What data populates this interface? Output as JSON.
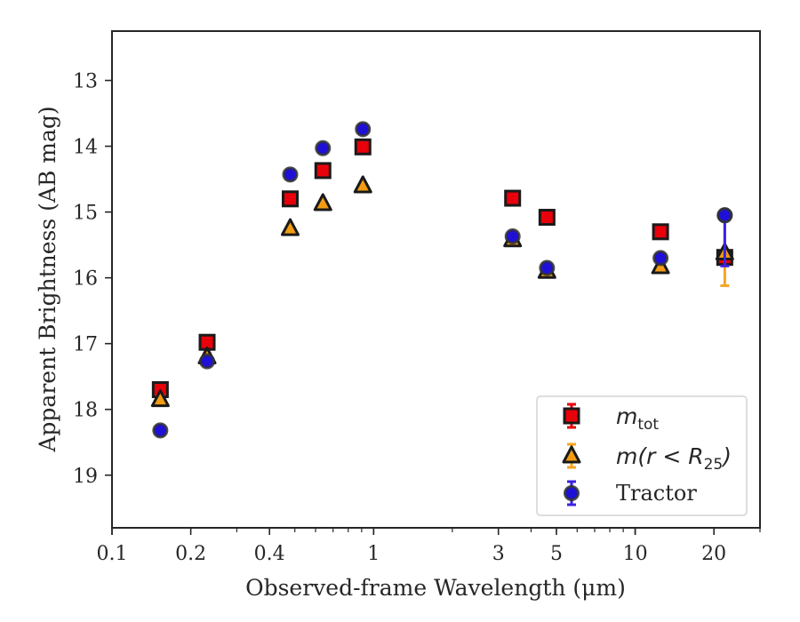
{
  "chart_data": {
    "type": "scatter",
    "xlabel": "Observed-frame Wavelength (μm)",
    "ylabel": "Apparent Brightness (AB mag)",
    "x_scale": "log",
    "xlim": [
      0.1,
      30
    ],
    "ylim": [
      19.8,
      12.25
    ],
    "y_inverted": true,
    "x_ticks": [
      0.1,
      0.2,
      0.4,
      1,
      3,
      5,
      10,
      20
    ],
    "x_tick_labels": [
      "0.1",
      "0.2",
      "0.4",
      "1",
      "3",
      "5",
      "10",
      "20"
    ],
    "y_ticks": [
      13,
      14,
      15,
      16,
      17,
      18,
      19
    ],
    "y_tick_labels": [
      "13",
      "14",
      "15",
      "16",
      "17",
      "18",
      "19"
    ],
    "grid": false,
    "legend_position": "bottom-right",
    "series": [
      {
        "name": "m_tot",
        "legend_main": "m",
        "legend_sub": "tot",
        "marker": "square",
        "color": "#e8000b",
        "error_color": "#e8000b",
        "x": [
          0.153,
          0.231,
          0.48,
          0.64,
          0.91,
          3.4,
          4.6,
          12.5,
          22.0
        ],
        "y": [
          17.7,
          16.98,
          14.8,
          14.37,
          14.01,
          14.79,
          15.08,
          15.3,
          15.69
        ],
        "yerr": [
          0.07,
          0.05,
          0.03,
          0.03,
          0.03,
          0.03,
          0.03,
          0.04,
          0.1
        ]
      },
      {
        "name": "m(r < R_25)",
        "legend_main": "m(r < R",
        "legend_sub": "25",
        "legend_close": ")",
        "marker": "triangle",
        "color": "#f39c12",
        "error_color": "#f5a623",
        "x": [
          0.153,
          0.231,
          0.48,
          0.64,
          0.91,
          3.4,
          4.6,
          12.5,
          22.0
        ],
        "y": [
          17.85,
          17.2,
          15.25,
          14.87,
          14.6,
          15.42,
          15.9,
          15.83,
          15.62
        ],
        "yerr": [
          0.05,
          0.04,
          0.03,
          0.03,
          0.03,
          0.04,
          0.05,
          0.08,
          0.5
        ]
      },
      {
        "name": "Tractor",
        "legend_main": "Tractor",
        "marker": "circle",
        "color": "#1f10d8",
        "error_color": "#3a22e0",
        "x": [
          0.153,
          0.231,
          0.48,
          0.64,
          0.91,
          3.4,
          4.6,
          12.5,
          22.0
        ],
        "y": [
          18.32,
          17.27,
          14.43,
          14.03,
          13.74,
          15.37,
          15.85,
          15.7,
          15.05
        ],
        "yerr": [
          0.06,
          0.05,
          0.07,
          0.05,
          0.07,
          0.05,
          0.07,
          0.06,
          0.05
        ]
      }
    ],
    "extra_errorbars": [
      {
        "series": "Tractor",
        "x": 22.0,
        "y_from": 15.05,
        "y_to": 15.82
      }
    ]
  }
}
